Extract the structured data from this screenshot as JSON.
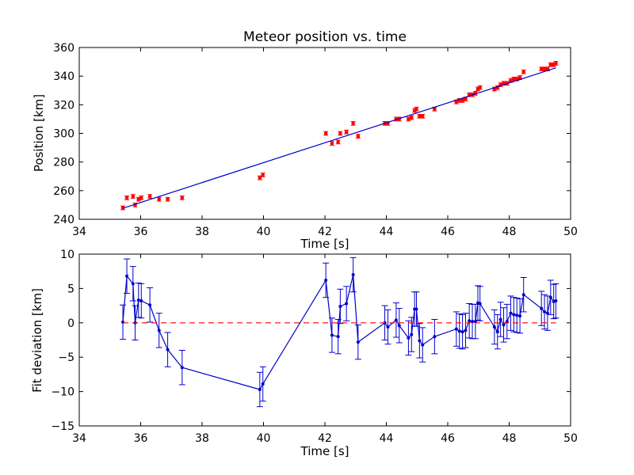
{
  "chart_data": [
    {
      "type": "scatter",
      "title": "Meteor position vs. time",
      "xlabel": "Time [s]",
      "ylabel": "Position [km]",
      "xlim": [
        34,
        50
      ],
      "ylim": [
        240,
        360
      ],
      "xticks": [
        34,
        36,
        38,
        40,
        42,
        44,
        46,
        48,
        50
      ],
      "yticks": [
        240,
        260,
        280,
        300,
        320,
        340,
        360
      ],
      "grid": false,
      "colors": {
        "points": "#ff0000",
        "fit": "#0000cc"
      },
      "series": [
        {
          "kind": "points_with_errorbars",
          "error": 1.3,
          "x": [
            35.42,
            35.55,
            35.75,
            35.82,
            35.93,
            36.02,
            36.3,
            36.6,
            36.88,
            37.35,
            39.88,
            39.98,
            42.03,
            42.23,
            42.43,
            42.5,
            42.7,
            42.92,
            43.08,
            43.95,
            44.05,
            44.32,
            44.42,
            44.72,
            44.82,
            44.92,
            44.98,
            45.08,
            45.18,
            45.57,
            46.28,
            46.38,
            46.48,
            46.58,
            46.7,
            46.8,
            46.9,
            46.98,
            47.05,
            47.52,
            47.62,
            47.72,
            47.82,
            47.93,
            48.05,
            48.15,
            48.25,
            48.35,
            48.47,
            49.05,
            49.15,
            49.25,
            49.35,
            49.45,
            49.52
          ],
          "y": [
            248,
            255,
            256,
            250,
            254,
            255,
            256,
            254,
            254,
            255,
            269,
            271,
            300,
            293,
            294,
            300,
            301,
            307,
            298,
            307,
            307,
            310,
            310,
            310,
            311,
            316,
            317,
            312,
            312,
            317,
            322,
            323,
            323,
            324,
            327,
            327,
            328,
            331,
            332,
            331,
            332,
            334,
            335,
            335,
            337,
            338,
            338,
            339,
            343,
            345,
            345,
            345,
            348,
            348,
            349
          ]
        },
        {
          "kind": "fit_line",
          "x": [
            35.42,
            49.52
          ],
          "y": [
            247.7,
            345.8
          ]
        }
      ]
    },
    {
      "type": "line",
      "xlabel": "Time [s]",
      "ylabel": "Fit deviation [km]",
      "xlim": [
        34,
        50
      ],
      "ylim": [
        -15,
        10
      ],
      "xticks": [
        34,
        36,
        38,
        40,
        42,
        44,
        46,
        48,
        50
      ],
      "yticks": [
        -15,
        -10,
        -5,
        0,
        5,
        10
      ],
      "grid": false,
      "colors": {
        "line": "#0000cc",
        "zero": "#ff0000"
      },
      "series": [
        {
          "kind": "line_with_errorbars",
          "error": 2.5,
          "x": [
            35.42,
            35.55,
            35.75,
            35.82,
            35.93,
            36.02,
            36.3,
            36.6,
            36.88,
            37.35,
            39.88,
            39.98,
            42.03,
            42.23,
            42.43,
            42.5,
            42.7,
            42.92,
            43.08,
            43.95,
            44.05,
            44.32,
            44.42,
            44.72,
            44.82,
            44.92,
            44.98,
            45.08,
            45.18,
            45.57,
            46.28,
            46.38,
            46.48,
            46.58,
            46.7,
            46.8,
            46.9,
            46.98,
            47.05,
            47.52,
            47.62,
            47.72,
            47.82,
            47.93,
            48.05,
            48.15,
            48.25,
            48.35,
            48.47,
            49.05,
            49.15,
            49.25,
            49.35,
            49.45,
            49.52
          ],
          "y": [
            0.1,
            6.8,
            5.7,
            0.0,
            3.3,
            3.2,
            2.6,
            -1.1,
            -3.9,
            -6.5,
            -9.7,
            -8.9,
            6.2,
            -1.8,
            -2.0,
            2.4,
            2.8,
            7.0,
            -2.8,
            0.0,
            -0.6,
            0.4,
            -0.4,
            -2.2,
            -1.7,
            2.0,
            2.0,
            -2.6,
            -3.2,
            -2.0,
            -0.9,
            -1.2,
            -1.3,
            -1.1,
            0.3,
            0.2,
            0.2,
            2.9,
            2.8,
            -0.6,
            -1.3,
            0.5,
            -0.3,
            0.2,
            1.4,
            1.2,
            1.1,
            1.0,
            4.1,
            2.1,
            1.6,
            1.4,
            3.7,
            3.1,
            3.2
          ]
        },
        {
          "kind": "reference_line",
          "style": "dashed",
          "x": [
            35.42,
            49.52
          ],
          "y": [
            0,
            0
          ]
        }
      ]
    }
  ]
}
